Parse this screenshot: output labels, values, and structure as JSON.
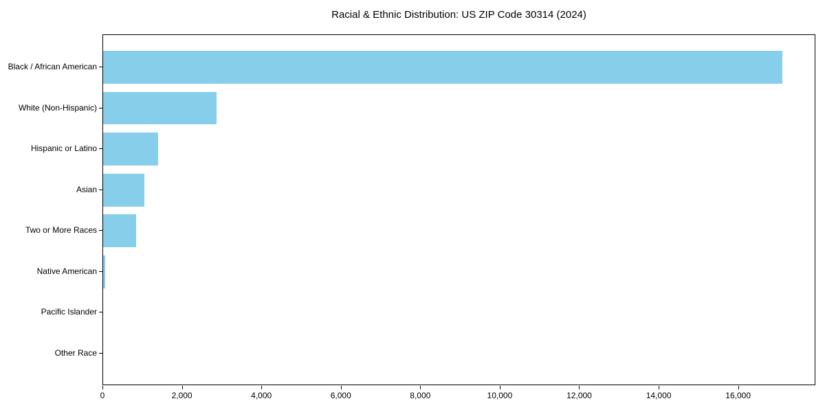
{
  "chart_data": {
    "type": "bar",
    "orientation": "horizontal",
    "title": "Racial & Ethnic Distribution: US ZIP Code 30314 (2024)",
    "categories": [
      "Black / African American",
      "White (Non-Hispanic)",
      "Hispanic or Latino",
      "Asian",
      "Two or More Races",
      "Native American",
      "Pacific Islander",
      "Other Race"
    ],
    "values": [
      17090,
      2850,
      1385,
      1040,
      830,
      52,
      0,
      0
    ],
    "xlabel": "",
    "ylabel": "",
    "xlim": [
      0,
      17944
    ],
    "xticks": [
      0,
      2000,
      4000,
      6000,
      8000,
      10000,
      12000,
      14000,
      16000
    ],
    "xtick_labels": [
      "0",
      "2,000",
      "4,000",
      "6,000",
      "8,000",
      "10,000",
      "12,000",
      "14,000",
      "16,000"
    ],
    "bar_color": "#87CEEB",
    "background_color": "#ffffff",
    "spine_color": "#000000",
    "grid": false,
    "legend": null
  }
}
